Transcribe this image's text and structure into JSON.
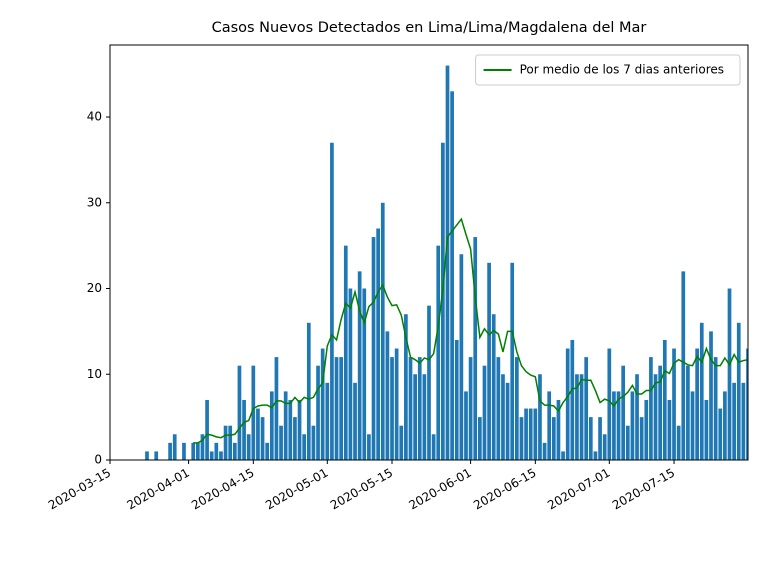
{
  "chart_data": {
    "type": "bar",
    "title": "Casos Nuevos Detectados en Lima/Lima/Magdalena del Mar",
    "x": [
      "2020-03-23",
      "2020-03-24",
      "2020-03-25",
      "2020-03-26",
      "2020-03-27",
      "2020-03-28",
      "2020-03-29",
      "2020-03-30",
      "2020-03-31",
      "2020-04-01",
      "2020-04-02",
      "2020-04-03",
      "2020-04-04",
      "2020-04-05",
      "2020-04-06",
      "2020-04-07",
      "2020-04-08",
      "2020-04-09",
      "2020-04-10",
      "2020-04-11",
      "2020-04-12",
      "2020-04-13",
      "2020-04-14",
      "2020-04-15",
      "2020-04-16",
      "2020-04-17",
      "2020-04-18",
      "2020-04-19",
      "2020-04-20",
      "2020-04-21",
      "2020-04-22",
      "2020-04-23",
      "2020-04-24",
      "2020-04-25",
      "2020-04-26",
      "2020-04-27",
      "2020-04-28",
      "2020-04-29",
      "2020-04-30",
      "2020-05-01",
      "2020-05-02",
      "2020-05-03",
      "2020-05-04",
      "2020-05-05",
      "2020-05-06",
      "2020-05-07",
      "2020-05-08",
      "2020-05-09",
      "2020-05-10",
      "2020-05-11",
      "2020-05-12",
      "2020-05-13",
      "2020-05-14",
      "2020-05-15",
      "2020-05-16",
      "2020-05-17",
      "2020-05-18",
      "2020-05-19",
      "2020-05-20",
      "2020-05-21",
      "2020-05-22",
      "2020-05-23",
      "2020-05-24",
      "2020-05-25",
      "2020-05-26",
      "2020-05-27",
      "2020-05-28",
      "2020-05-29",
      "2020-05-30",
      "2020-05-31",
      "2020-06-01",
      "2020-06-02",
      "2020-06-03",
      "2020-06-04",
      "2020-06-05",
      "2020-06-06",
      "2020-06-07",
      "2020-06-08",
      "2020-06-09",
      "2020-06-10",
      "2020-06-11",
      "2020-06-12",
      "2020-06-13",
      "2020-06-14",
      "2020-06-15",
      "2020-06-16",
      "2020-06-17",
      "2020-06-18",
      "2020-06-19",
      "2020-06-20",
      "2020-06-21",
      "2020-06-22",
      "2020-06-23",
      "2020-06-24",
      "2020-06-25",
      "2020-06-26",
      "2020-06-27",
      "2020-06-28",
      "2020-06-29",
      "2020-06-30",
      "2020-07-01",
      "2020-07-02",
      "2020-07-03",
      "2020-07-04",
      "2020-07-05",
      "2020-07-06",
      "2020-07-07",
      "2020-07-08",
      "2020-07-09",
      "2020-07-10",
      "2020-07-11",
      "2020-07-12",
      "2020-07-13",
      "2020-07-14",
      "2020-07-15",
      "2020-07-16",
      "2020-07-17",
      "2020-07-18",
      "2020-07-19",
      "2020-07-20",
      "2020-07-21",
      "2020-07-22",
      "2020-07-23",
      "2020-07-24",
      "2020-07-25",
      "2020-07-26",
      "2020-07-27",
      "2020-07-28",
      "2020-07-29",
      "2020-07-30",
      "2020-07-31"
    ],
    "series": [
      {
        "type": "bar",
        "color": "#1f77b4",
        "values": [
          1,
          0,
          1,
          0,
          0,
          2,
          3,
          0,
          2,
          0,
          2,
          2,
          3,
          7,
          1,
          2,
          1,
          4,
          4,
          2,
          11,
          7,
          3,
          11,
          6,
          5,
          2,
          8,
          12,
          4,
          8,
          7,
          5,
          7,
          3,
          16,
          4,
          11,
          13,
          9,
          37,
          12,
          12,
          25,
          20,
          9,
          22,
          20,
          3,
          26,
          27,
          30,
          15,
          12,
          13,
          4,
          17,
          12,
          10,
          12,
          10,
          18,
          3,
          25,
          37,
          46,
          43,
          14,
          24,
          8,
          12,
          26,
          5,
          11,
          23,
          17,
          12,
          10,
          9,
          23,
          12,
          5,
          6,
          6,
          6,
          10,
          2,
          8,
          5,
          7,
          1,
          13,
          14,
          10,
          10,
          12,
          5,
          1,
          5,
          3,
          13,
          8,
          8,
          11,
          4,
          8,
          10,
          5,
          7,
          12,
          10,
          11,
          14,
          7,
          13,
          4,
          22,
          11,
          8,
          13,
          16,
          7,
          15,
          12,
          6,
          8,
          20,
          9,
          16,
          9,
          13
        ]
      },
      {
        "type": "line",
        "name": "Por medio de los 7 dias anteriores",
        "color": "#008000",
        "values": [
          null,
          null,
          null,
          null,
          null,
          null,
          null,
          null,
          null,
          null,
          2,
          2,
          2.3,
          3,
          2.9,
          2.7,
          2.6,
          2.9,
          2.9,
          3,
          3.7,
          4.4,
          4.6,
          6,
          6.3,
          6.4,
          6.4,
          6.1,
          6.9,
          6.9,
          6.6,
          6.6,
          7.3,
          6.7,
          7.3,
          7.1,
          7.3,
          8.3,
          9,
          13.3,
          14.6,
          14,
          16.4,
          18.3,
          17.7,
          19.6,
          17.4,
          16,
          17.9,
          18.4,
          19.6,
          20.4,
          19,
          18,
          18.1,
          16.9,
          14.3,
          12,
          11.7,
          11.3,
          11.9,
          11.7,
          12.4,
          15.6,
          19.9,
          26,
          26.7,
          27.4,
          28.1,
          26.3,
          24.6,
          19,
          14.3,
          15.3,
          14.6,
          15.1,
          14.7,
          12.6,
          15,
          15,
          12.6,
          11,
          10.3,
          9.9,
          9.7,
          6.9,
          6.4,
          6.4,
          6.3,
          5.7,
          6.7,
          7.4,
          8.3,
          8.4,
          9.4,
          9.3,
          9.3,
          8.1,
          6.7,
          7.1,
          6.9,
          6.3,
          7.1,
          7.4,
          7.9,
          8.7,
          7.7,
          7.7,
          8.1,
          8.1,
          9,
          9.1,
          10.4,
          10.1,
          11.3,
          11.7,
          11.4,
          11.1,
          11,
          12.1,
          11.4,
          13,
          11.7,
          11,
          11,
          11.9,
          11.1,
          12.3,
          11.4,
          11.6,
          11.7
        ]
      }
    ],
    "xlim": [
      "2020-03-15",
      "2020-07-31"
    ],
    "xticks": [
      "2020-03-15",
      "2020-04-01",
      "2020-04-15",
      "2020-05-01",
      "2020-05-15",
      "2020-06-01",
      "2020-06-15",
      "2020-07-01",
      "2020-07-15"
    ],
    "ylim": [
      0,
      48.4
    ],
    "yticks": [
      0,
      10,
      20,
      30,
      40
    ],
    "legend": "upper right"
  }
}
